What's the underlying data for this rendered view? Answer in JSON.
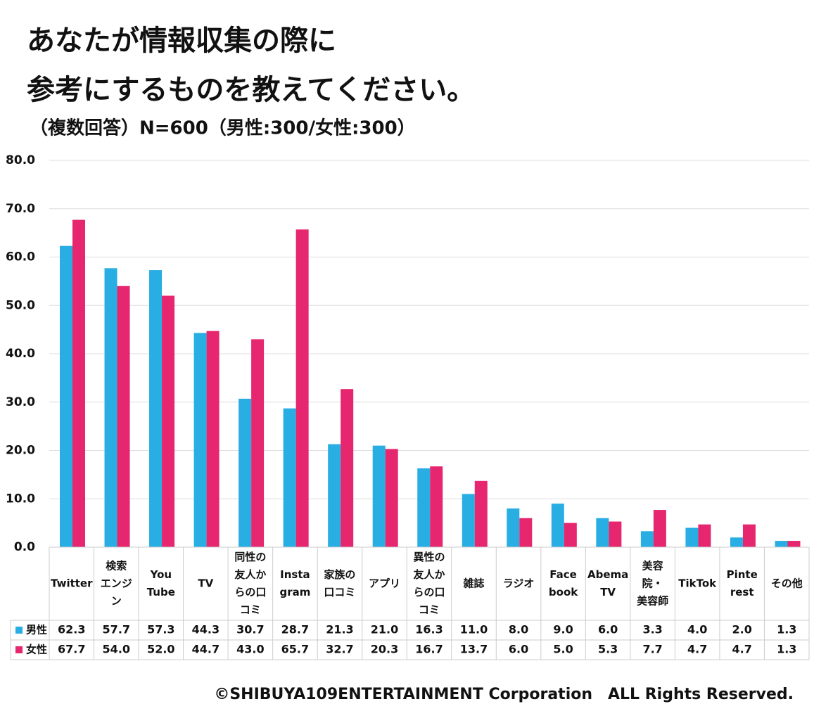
{
  "chart_data": {
    "type": "bar",
    "title": [
      "あなたが情報収集の際に",
      "参考にするものを教えてください。"
    ],
    "subtitle": "（複数回答）N=600（男性:300/女性:300）",
    "categories": [
      [
        "Twitter"
      ],
      [
        "検索",
        "エンジ",
        "ン"
      ],
      [
        "You",
        "Tube"
      ],
      [
        "TV"
      ],
      [
        "同性の",
        "友人か",
        "らの口",
        "コミ"
      ],
      [
        "Insta",
        "gram"
      ],
      [
        "家族の",
        "口コミ"
      ],
      [
        "アプリ"
      ],
      [
        "異性の",
        "友人か",
        "らの口",
        "コミ"
      ],
      [
        "雑誌"
      ],
      [
        "ラジオ"
      ],
      [
        "Face",
        "book"
      ],
      [
        "Abema",
        "TV"
      ],
      [
        "美容",
        "院・",
        "美容師"
      ],
      [
        "TikTok"
      ],
      [
        "Pinte",
        "rest"
      ],
      [
        "その他"
      ]
    ],
    "series": [
      {
        "name": "男性",
        "color": "#29aee3",
        "values": [
          62.3,
          57.7,
          57.3,
          44.3,
          30.7,
          28.7,
          21.3,
          21.0,
          16.3,
          11.0,
          8.0,
          9.0,
          6.0,
          3.3,
          4.0,
          2.0,
          1.3
        ],
        "value_labels": [
          "62.3",
          "57.7",
          "57.3",
          "44.3",
          "30.7",
          "28.7",
          "21.3",
          "21.0",
          "16.3",
          "11.0",
          "8.0",
          "9.0",
          "6.0",
          "3.3",
          "4.0",
          "2.0",
          "1.3"
        ]
      },
      {
        "name": "女性",
        "color": "#e6266e",
        "values": [
          67.7,
          54.0,
          52.0,
          44.7,
          43.0,
          65.7,
          32.7,
          20.3,
          16.7,
          13.7,
          6.0,
          5.0,
          5.3,
          7.7,
          4.7,
          4.7,
          1.3
        ],
        "value_labels": [
          "67.7",
          "54.0",
          "52.0",
          "44.7",
          "43.0",
          "65.7",
          "32.7",
          "20.3",
          "16.7",
          "13.7",
          "6.0",
          "5.0",
          "5.3",
          "7.7",
          "4.7",
          "4.7",
          "1.3"
        ]
      }
    ],
    "ylim": [
      0,
      80
    ],
    "yticks": [
      {
        "value": 0,
        "label": "0.0"
      },
      {
        "value": 10,
        "label": "10.0"
      },
      {
        "value": 20,
        "label": "20.0"
      },
      {
        "value": 30,
        "label": "30.0"
      },
      {
        "value": 40,
        "label": "40.0"
      },
      {
        "value": 50,
        "label": "50.0"
      },
      {
        "value": 60,
        "label": "60.0"
      },
      {
        "value": 70,
        "label": "70.0"
      },
      {
        "value": 80,
        "label": "80.0"
      }
    ],
    "grid": true,
    "footer": "©SHIBUYA109ENTERTAINMENT Corporation　ALL Rights Reserved."
  }
}
